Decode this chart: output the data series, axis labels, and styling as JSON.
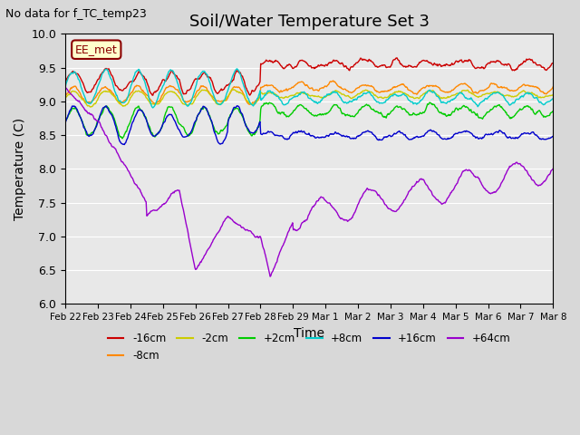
{
  "title": "Soil/Water Temperature Set 3",
  "xlabel": "Time",
  "ylabel": "Temperature (C)",
  "no_data_text": "No data for f_TC_temp23",
  "legend_label_text": "EE_met",
  "ylim": [
    6.0,
    10.0
  ],
  "yticks": [
    6.0,
    6.5,
    7.0,
    7.5,
    8.0,
    8.5,
    9.0,
    9.5,
    10.0
  ],
  "xtick_days": [
    0,
    1,
    2,
    3,
    4,
    5,
    6,
    7,
    8,
    9,
    10,
    11,
    12,
    13,
    14,
    15
  ],
  "xtick_labels": [
    "Feb 22",
    "Feb 23",
    "Feb 24",
    "Feb 25",
    "Feb 26",
    "Feb 27",
    "Feb 28",
    "Feb 29",
    "Mar 1",
    "Mar 2",
    "Mar 3",
    "Mar 4",
    "Mar 5",
    "Mar 6",
    "Mar 7",
    "Mar 8"
  ],
  "series": [
    {
      "label": "-16cm",
      "color": "#cc0000"
    },
    {
      "label": "-8cm",
      "color": "#ff8800"
    },
    {
      "label": "-2cm",
      "color": "#cccc00"
    },
    {
      "label": "+2cm",
      "color": "#00cc00"
    },
    {
      "label": "+8cm",
      "color": "#00cccc"
    },
    {
      "label": "+16cm",
      "color": "#0000cc"
    },
    {
      "label": "+64cm",
      "color": "#9900cc"
    }
  ],
  "figsize": [
    6.4,
    4.8
  ],
  "dpi": 100
}
